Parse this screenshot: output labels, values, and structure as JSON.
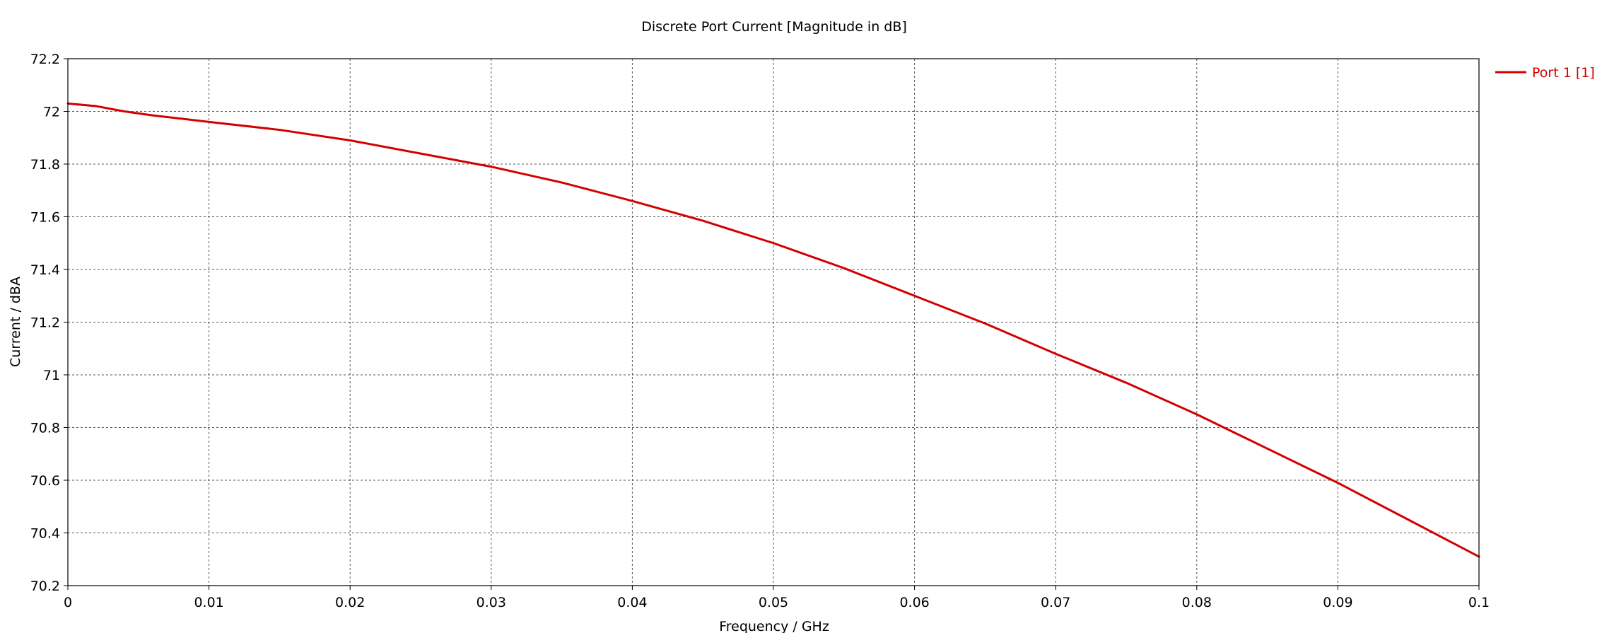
{
  "chart_data": {
    "type": "line",
    "title": "Discrete Port Current [Magnitude in dB]",
    "xlabel": "Frequency / GHz",
    "ylabel": "Current / dBA",
    "xlim": [
      0,
      0.1
    ],
    "ylim": [
      70.2,
      72.2
    ],
    "x_ticks": [
      0,
      0.01,
      0.02,
      0.03,
      0.04,
      0.05,
      0.06,
      0.07,
      0.08,
      0.09,
      0.1
    ],
    "x_tick_labels": [
      "0",
      "0.01",
      "0.02",
      "0.03",
      "0.04",
      "0.05",
      "0.06",
      "0.07",
      "0.08",
      "0.09",
      "0.1"
    ],
    "y_ticks": [
      70.2,
      70.4,
      70.6,
      70.8,
      71,
      71.2,
      71.4,
      71.6,
      71.8,
      72,
      72.2
    ],
    "y_tick_labels": [
      "70.2",
      "70.4",
      "70.6",
      "70.8",
      "71",
      "71.2",
      "71.4",
      "71.6",
      "71.8",
      "72",
      "72.2"
    ],
    "grid": true,
    "legend_position": "top-right",
    "series": [
      {
        "name": "Port 1 [1]",
        "color": "#d40000",
        "x": [
          0,
          0.002,
          0.004,
          0.006,
          0.01,
          0.015,
          0.02,
          0.025,
          0.03,
          0.035,
          0.04,
          0.045,
          0.05,
          0.055,
          0.06,
          0.065,
          0.07,
          0.075,
          0.08,
          0.085,
          0.09,
          0.095,
          0.1
        ],
        "y": [
          72.03,
          72.02,
          72.0,
          71.985,
          71.96,
          71.93,
          71.89,
          71.84,
          71.79,
          71.73,
          71.66,
          71.585,
          71.5,
          71.405,
          71.3,
          71.195,
          71.08,
          70.97,
          70.85,
          70.72,
          70.59,
          70.45,
          70.31
        ]
      }
    ]
  }
}
